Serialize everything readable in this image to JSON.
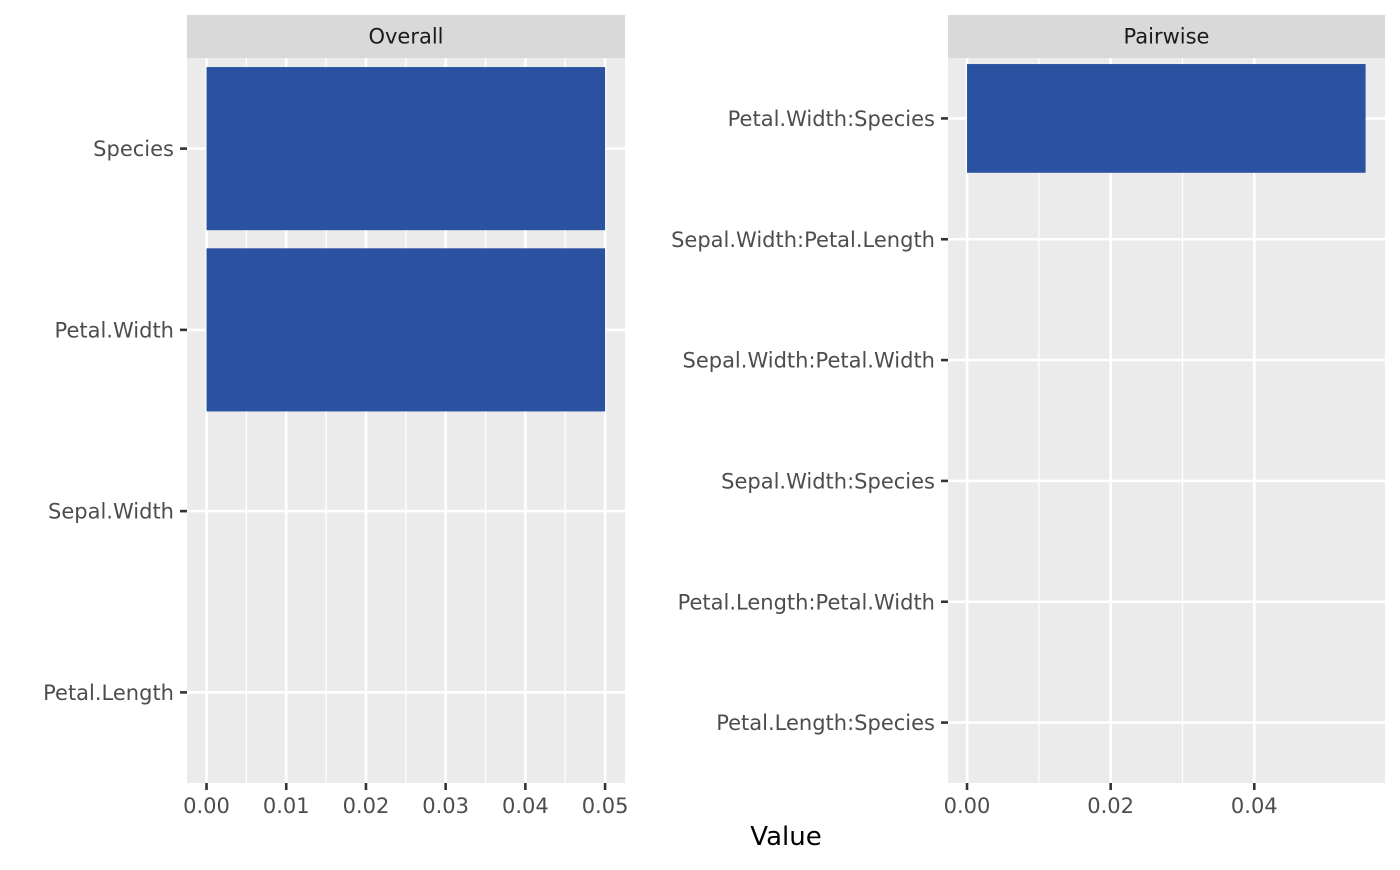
{
  "chart_data": {
    "type": "bar",
    "orientation": "horizontal",
    "xlabel": "Value",
    "ylabel": "",
    "bar_color": "#2b52a0",
    "panel_background": "#ebebeb",
    "strip_background": "#d9d9d9",
    "grid": true,
    "legend": "none",
    "facets": [
      {
        "strip": "Overall",
        "categories": [
          "Species",
          "Petal.Width",
          "Sepal.Width",
          "Petal.Length"
        ],
        "values": [
          0.05,
          0.05,
          0,
          0
        ],
        "xlim": [
          -0.00245,
          0.0525
        ],
        "ticks": [
          0,
          0.01,
          0.02,
          0.03,
          0.04,
          0.05
        ],
        "tick_labels": [
          "0.00",
          "0.01",
          "0.02",
          "0.03",
          "0.04",
          "0.05"
        ]
      },
      {
        "strip": "Pairwise",
        "categories": [
          "Petal.Width:Species",
          "Sepal.Width:Petal.Length",
          "Sepal.Width:Petal.Width",
          "Sepal.Width:Species",
          "Petal.Length:Petal.Width",
          "Petal.Length:Species"
        ],
        "values": [
          0.0555,
          0,
          0,
          0,
          0,
          0
        ],
        "xlim": [
          -0.00265,
          0.0582
        ],
        "ticks": [
          0,
          0.02,
          0.04
        ],
        "tick_labels": [
          "0.00",
          "0.02",
          "0.04"
        ]
      }
    ]
  }
}
